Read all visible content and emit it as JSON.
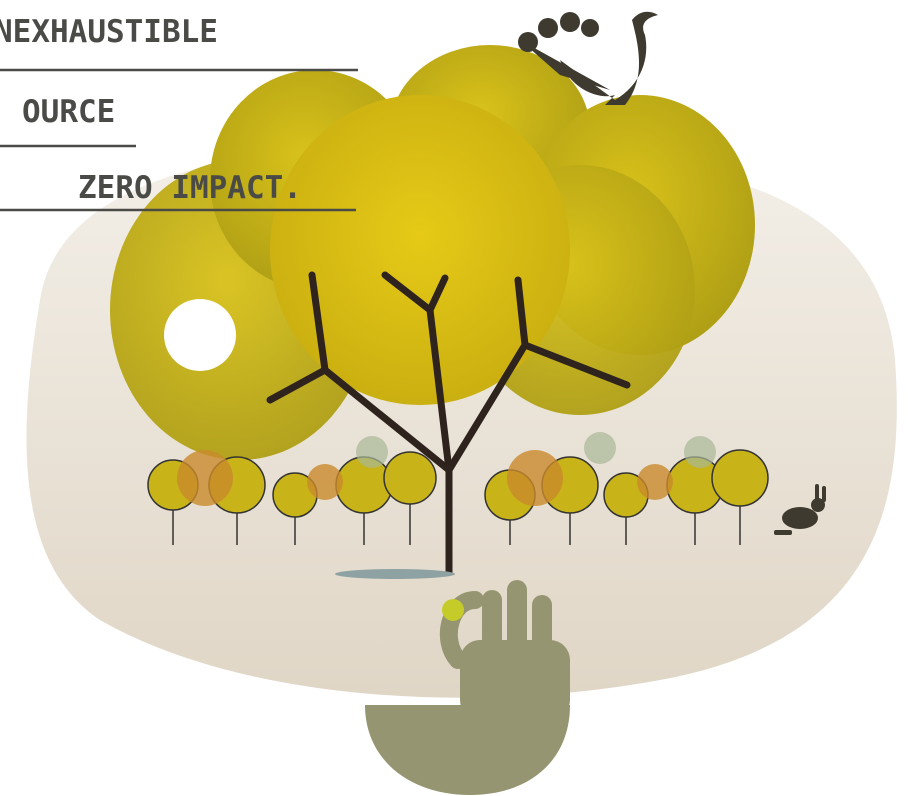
{
  "headline": {
    "lines": [
      "NEXHAUSTIBLE",
      "OURCE",
      "ZERO IMPACT."
    ]
  }
}
